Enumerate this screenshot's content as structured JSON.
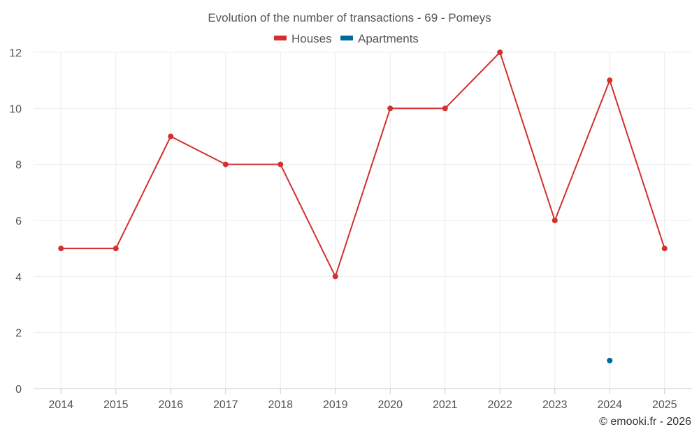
{
  "chart_data": {
    "type": "line",
    "title": "Evolution of the number of transactions - 69 - Pomeys",
    "categories": [
      "2014",
      "2015",
      "2016",
      "2017",
      "2018",
      "2019",
      "2020",
      "2021",
      "2022",
      "2023",
      "2024",
      "2025"
    ],
    "series": [
      {
        "name": "Houses",
        "color": "#d32f2f",
        "values": [
          5,
          5,
          9,
          8,
          8,
          4,
          10,
          10,
          12,
          6,
          11,
          5
        ]
      },
      {
        "name": "Apartments",
        "color": "#01699e",
        "values": [
          null,
          null,
          null,
          null,
          null,
          null,
          null,
          null,
          null,
          null,
          1,
          null
        ]
      }
    ],
    "ylim": [
      0,
      12
    ],
    "yticks": [
      0,
      2,
      4,
      6,
      8,
      10,
      12
    ],
    "grid": true,
    "legend_position": "top-center",
    "xlabel": "",
    "ylabel": ""
  },
  "credit": "© emooki.fr - 2026"
}
